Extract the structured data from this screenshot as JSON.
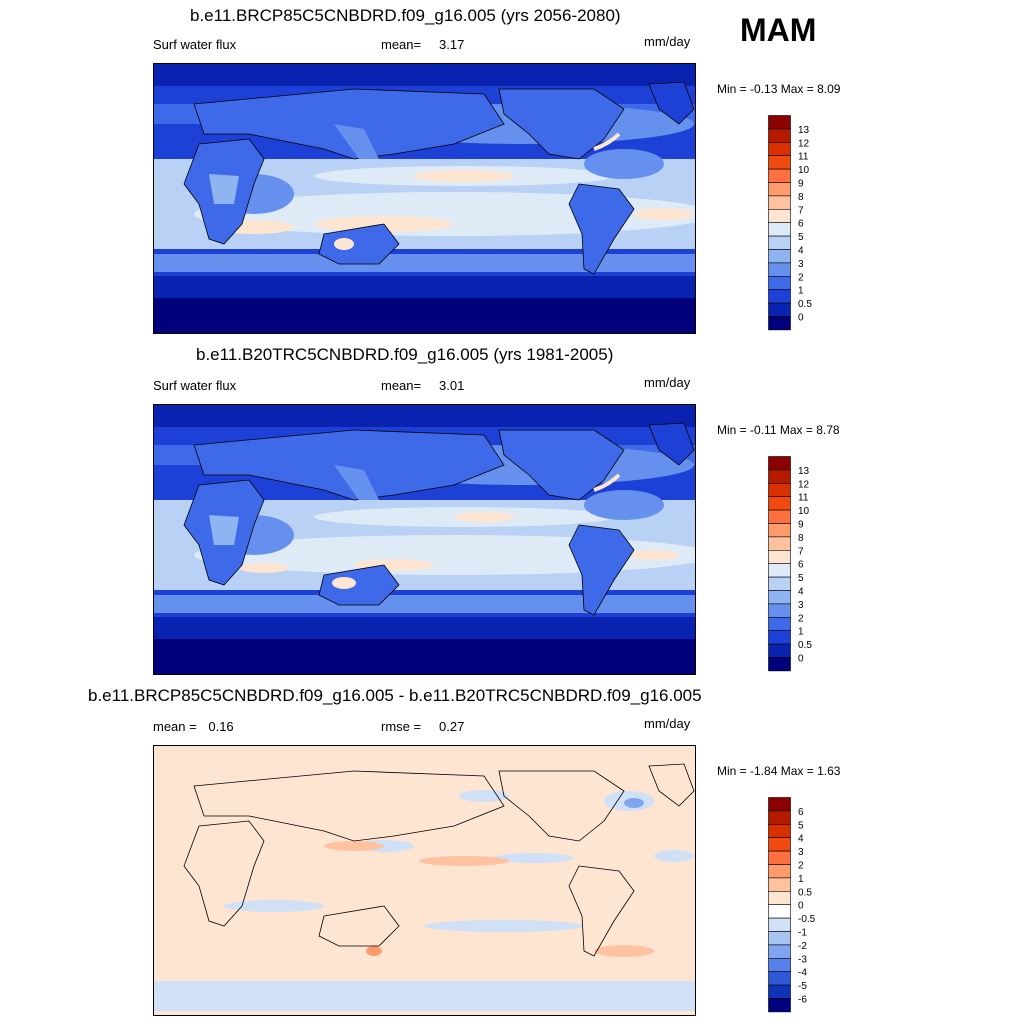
{
  "season": "MAM",
  "panels": [
    {
      "title": "b.e11.BRCP85C5CNBDRD.f09_g16.005 (yrs 2056-2080)",
      "left_label": "Surf water flux",
      "stat_label": "mean=",
      "stat_value": "3.17",
      "units": "mm/day",
      "min_label": "Min =",
      "min_value": "-0.13",
      "max_label": "Max =",
      "max_value": "8.09",
      "colorbar": {
        "labels": [
          "13",
          "12",
          "11",
          "10",
          "9",
          "8",
          "7",
          "6",
          "5",
          "4",
          "3",
          "2",
          "1",
          "0.5",
          "0"
        ],
        "colors": [
          "#8b0000",
          "#b51a00",
          "#d93000",
          "#f04a10",
          "#ff7040",
          "#ff9a6a",
          "#ffc2a0",
          "#fee5d2",
          "#deebf7",
          "#b8d1f5",
          "#8fb4f2",
          "#6690ee",
          "#3e6aea",
          "#1d40d6",
          "#0a22b0",
          "#00007c"
        ]
      }
    },
    {
      "title": "b.e11.B20TRC5CNBDRD.f09_g16.005 (yrs 1981-2005)",
      "left_label": "Surf water flux",
      "stat_label": "mean=",
      "stat_value": "3.01",
      "units": "mm/day",
      "min_label": "Min =",
      "min_value": "-0.11",
      "max_label": "Max =",
      "max_value": "8.78",
      "colorbar": {
        "labels": [
          "13",
          "12",
          "11",
          "10",
          "9",
          "8",
          "7",
          "6",
          "5",
          "4",
          "3",
          "2",
          "1",
          "0.5",
          "0"
        ],
        "colors": [
          "#8b0000",
          "#b51a00",
          "#d93000",
          "#f04a10",
          "#ff7040",
          "#ff9a6a",
          "#ffc2a0",
          "#fee5d2",
          "#deebf7",
          "#b8d1f5",
          "#8fb4f2",
          "#6690ee",
          "#3e6aea",
          "#1d40d6",
          "#0a22b0",
          "#00007c"
        ]
      }
    },
    {
      "title": "b.e11.BRCP85C5CNBDRD.f09_g16.005 - b.e11.B20TRC5CNBDRD.f09_g16.005",
      "left_label": "mean =",
      "left_value": "0.16",
      "stat_label": "rmse =",
      "stat_value": "0.27",
      "units": "mm/day",
      "min_label": "Min =",
      "min_value": "-1.84",
      "max_label": "Max =",
      "max_value": "1.63",
      "colorbar": {
        "labels": [
          "6",
          "5",
          "4",
          "3",
          "2",
          "1",
          "0.5",
          "0",
          "-0.5",
          "-1",
          "-2",
          "-3",
          "-4",
          "-5",
          "-6"
        ],
        "colors": [
          "#8b0000",
          "#b51a00",
          "#d93000",
          "#f04a10",
          "#ff7040",
          "#ff9a6a",
          "#ffc2a0",
          "#fee5d2",
          "#ffffff",
          "#cfe0f7",
          "#a8c5f2",
          "#7fa5ee",
          "#5681ea",
          "#2f58d8",
          "#1034b8",
          "#000080"
        ]
      }
    }
  ]
}
